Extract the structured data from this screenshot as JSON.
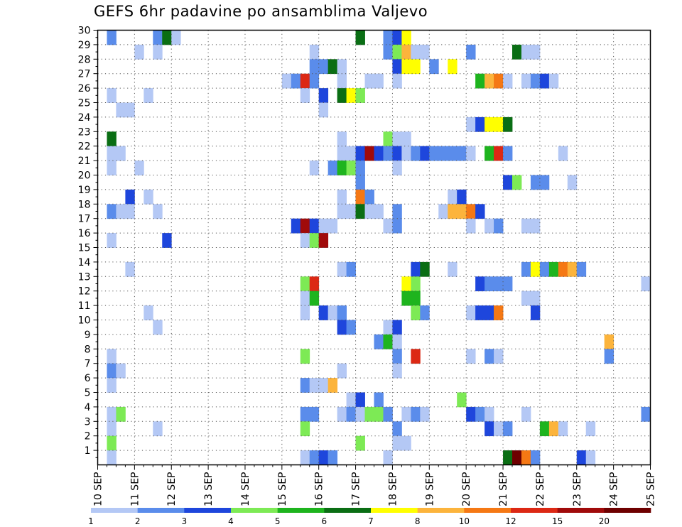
{
  "chart_data": {
    "type": "heatmap",
    "title": "GEFS 6hr padavine po ansamblima Valjevo",
    "xlabel": "",
    "ylabel": "",
    "x_ticks": [
      "10 SEP",
      "11 SEP",
      "12 SEP",
      "13 SEP",
      "14 SEP",
      "15 SEP",
      "16 SEP",
      "17 SEP",
      "18 SEP",
      "19 SEP",
      "20 SEP",
      "21 SEP",
      "22 SEP",
      "23 SEP",
      "24 SEP",
      "25 SEP"
    ],
    "y_ticks": [
      1,
      2,
      3,
      4,
      5,
      6,
      7,
      8,
      9,
      10,
      11,
      12,
      13,
      14,
      15,
      16,
      17,
      18,
      19,
      20,
      21,
      22,
      23,
      24,
      25,
      26,
      27,
      28,
      29,
      30
    ],
    "xlim": [
      0,
      60
    ],
    "ylim": [
      0,
      30
    ],
    "x_unit": "6-hour step after 10 SEP 00Z",
    "grid": "dotted",
    "levels": {
      "labels": [
        "1",
        "2",
        "3",
        "4",
        "5",
        "6",
        "7",
        "8",
        "10",
        "12",
        "15",
        "20"
      ],
      "colors": [
        "#b4c8f5",
        "#5a8ceb",
        "#1e46dc",
        "#7dea55",
        "#1eb41e",
        "#0a6e14",
        "#ffff00",
        "#fcb43c",
        "#f57814",
        "#dc2814",
        "#a00a0a",
        "#6e0000"
      ]
    },
    "cells": [
      [
        1,
        29,
        1
      ],
      [
        6,
        29,
        1
      ],
      [
        7,
        29,
        5
      ],
      [
        8,
        29,
        0
      ],
      [
        28,
        29,
        5
      ],
      [
        31,
        29,
        1
      ],
      [
        32,
        29,
        2
      ],
      [
        33,
        29,
        6
      ],
      [
        4,
        28,
        0
      ],
      [
        6,
        28,
        0
      ],
      [
        23,
        28,
        0
      ],
      [
        31,
        28,
        1
      ],
      [
        32,
        28,
        3
      ],
      [
        33,
        28,
        7
      ],
      [
        34,
        28,
        0
      ],
      [
        35,
        28,
        0
      ],
      [
        40,
        28,
        1
      ],
      [
        45,
        28,
        5
      ],
      [
        46,
        28,
        0
      ],
      [
        47,
        28,
        0
      ],
      [
        23,
        27,
        1
      ],
      [
        24,
        27,
        1
      ],
      [
        25,
        27,
        5
      ],
      [
        26,
        27,
        0
      ],
      [
        32,
        27,
        2
      ],
      [
        33,
        27,
        6
      ],
      [
        34,
        27,
        6
      ],
      [
        36,
        27,
        1
      ],
      [
        38,
        27,
        6
      ],
      [
        20,
        26,
        0
      ],
      [
        21,
        26,
        1
      ],
      [
        22,
        26,
        9
      ],
      [
        23,
        26,
        1
      ],
      [
        26,
        26,
        0
      ],
      [
        29,
        26,
        0
      ],
      [
        30,
        26,
        0
      ],
      [
        32,
        26,
        0
      ],
      [
        41,
        26,
        4
      ],
      [
        42,
        26,
        7
      ],
      [
        43,
        26,
        8
      ],
      [
        44,
        26,
        0
      ],
      [
        46,
        26,
        0
      ],
      [
        47,
        26,
        1
      ],
      [
        48,
        26,
        2
      ],
      [
        49,
        26,
        0
      ],
      [
        1,
        25,
        0
      ],
      [
        5,
        25,
        0
      ],
      [
        22,
        25,
        0
      ],
      [
        24,
        25,
        2
      ],
      [
        26,
        25,
        5
      ],
      [
        27,
        25,
        6
      ],
      [
        28,
        25,
        3
      ],
      [
        2,
        24,
        0
      ],
      [
        3,
        24,
        0
      ],
      [
        24,
        24,
        0
      ],
      [
        40,
        23,
        0
      ],
      [
        41,
        23,
        2
      ],
      [
        42,
        23,
        6
      ],
      [
        43,
        23,
        6
      ],
      [
        44,
        23,
        5
      ],
      [
        1,
        22,
        5
      ],
      [
        26,
        22,
        0
      ],
      [
        31,
        22,
        3
      ],
      [
        32,
        22,
        0
      ],
      [
        33,
        22,
        0
      ],
      [
        1,
        21,
        0
      ],
      [
        2,
        21,
        0
      ],
      [
        26,
        21,
        0
      ],
      [
        27,
        21,
        0
      ],
      [
        28,
        21,
        2
      ],
      [
        29,
        21,
        10
      ],
      [
        30,
        21,
        2
      ],
      [
        31,
        21,
        1
      ],
      [
        32,
        21,
        2
      ],
      [
        33,
        21,
        0
      ],
      [
        34,
        21,
        1
      ],
      [
        35,
        21,
        2
      ],
      [
        36,
        21,
        1
      ],
      [
        37,
        21,
        1
      ],
      [
        38,
        21,
        1
      ],
      [
        39,
        21,
        1
      ],
      [
        40,
        21,
        0
      ],
      [
        42,
        21,
        4
      ],
      [
        43,
        21,
        9
      ],
      [
        44,
        21,
        1
      ],
      [
        50,
        21,
        0
      ],
      [
        1,
        20,
        0
      ],
      [
        4,
        20,
        0
      ],
      [
        23,
        20,
        0
      ],
      [
        25,
        20,
        1
      ],
      [
        26,
        20,
        4
      ],
      [
        27,
        20,
        3
      ],
      [
        28,
        20,
        1
      ],
      [
        32,
        20,
        0
      ],
      [
        28,
        19,
        1
      ],
      [
        44,
        19,
        2
      ],
      [
        45,
        19,
        3
      ],
      [
        47,
        19,
        1
      ],
      [
        48,
        19,
        1
      ],
      [
        51,
        19,
        0
      ],
      [
        3,
        18,
        2
      ],
      [
        5,
        18,
        0
      ],
      [
        26,
        18,
        0
      ],
      [
        28,
        18,
        8
      ],
      [
        29,
        18,
        1
      ],
      [
        38,
        18,
        0
      ],
      [
        39,
        18,
        2
      ],
      [
        1,
        17,
        1
      ],
      [
        2,
        17,
        0
      ],
      [
        3,
        17,
        0
      ],
      [
        6,
        17,
        0
      ],
      [
        26,
        17,
        0
      ],
      [
        27,
        17,
        0
      ],
      [
        28,
        17,
        5
      ],
      [
        29,
        17,
        0
      ],
      [
        30,
        17,
        0
      ],
      [
        32,
        17,
        1
      ],
      [
        37,
        17,
        0
      ],
      [
        38,
        17,
        7
      ],
      [
        39,
        17,
        7
      ],
      [
        40,
        17,
        8
      ],
      [
        41,
        17,
        2
      ],
      [
        21,
        16,
        2
      ],
      [
        22,
        16,
        10
      ],
      [
        23,
        16,
        2
      ],
      [
        24,
        16,
        0
      ],
      [
        25,
        16,
        0
      ],
      [
        31,
        16,
        0
      ],
      [
        32,
        16,
        1
      ],
      [
        40,
        16,
        0
      ],
      [
        42,
        16,
        0
      ],
      [
        43,
        16,
        1
      ],
      [
        46,
        16,
        0
      ],
      [
        47,
        16,
        0
      ],
      [
        1,
        15,
        0
      ],
      [
        7,
        15,
        2
      ],
      [
        22,
        15,
        0
      ],
      [
        23,
        15,
        3
      ],
      [
        24,
        15,
        10
      ],
      [
        3,
        13,
        0
      ],
      [
        26,
        13,
        0
      ],
      [
        27,
        13,
        1
      ],
      [
        34,
        13,
        2
      ],
      [
        35,
        13,
        5
      ],
      [
        38,
        13,
        0
      ],
      [
        46,
        13,
        1
      ],
      [
        47,
        13,
        6
      ],
      [
        48,
        13,
        1
      ],
      [
        49,
        13,
        4
      ],
      [
        50,
        13,
        8
      ],
      [
        51,
        13,
        7
      ],
      [
        52,
        13,
        1
      ],
      [
        22,
        12,
        3
      ],
      [
        23,
        12,
        9
      ],
      [
        33,
        12,
        6
      ],
      [
        34,
        12,
        3
      ],
      [
        41,
        12,
        2
      ],
      [
        42,
        12,
        1
      ],
      [
        43,
        12,
        1
      ],
      [
        44,
        12,
        1
      ],
      [
        59,
        12,
        0
      ],
      [
        22,
        11,
        0
      ],
      [
        23,
        11,
        4
      ],
      [
        33,
        11,
        4
      ],
      [
        34,
        11,
        4
      ],
      [
        46,
        11,
        0
      ],
      [
        47,
        11,
        0
      ],
      [
        5,
        10,
        0
      ],
      [
        22,
        10,
        0
      ],
      [
        24,
        10,
        2
      ],
      [
        25,
        10,
        0
      ],
      [
        26,
        10,
        1
      ],
      [
        34,
        10,
        3
      ],
      [
        35,
        10,
        1
      ],
      [
        40,
        10,
        0
      ],
      [
        41,
        10,
        2
      ],
      [
        42,
        10,
        2
      ],
      [
        43,
        10,
        8
      ],
      [
        47,
        10,
        2
      ],
      [
        6,
        9,
        0
      ],
      [
        26,
        9,
        2
      ],
      [
        27,
        9,
        1
      ],
      [
        31,
        9,
        0
      ],
      [
        32,
        9,
        2
      ],
      [
        30,
        8,
        1
      ],
      [
        31,
        8,
        4
      ],
      [
        32,
        8,
        0
      ],
      [
        55,
        8,
        7
      ],
      [
        1,
        7,
        0
      ],
      [
        22,
        7,
        3
      ],
      [
        32,
        7,
        1
      ],
      [
        34,
        7,
        9
      ],
      [
        40,
        7,
        0
      ],
      [
        42,
        7,
        1
      ],
      [
        43,
        7,
        0
      ],
      [
        55,
        7,
        1
      ],
      [
        1,
        6,
        1
      ],
      [
        2,
        6,
        0
      ],
      [
        26,
        6,
        0
      ],
      [
        32,
        6,
        0
      ],
      [
        1,
        5,
        0
      ],
      [
        22,
        5,
        1
      ],
      [
        23,
        5,
        0
      ],
      [
        24,
        5,
        0
      ],
      [
        25,
        5,
        7
      ],
      [
        27,
        4,
        0
      ],
      [
        28,
        4,
        2
      ],
      [
        30,
        4,
        1
      ],
      [
        39,
        4,
        3
      ],
      [
        1,
        3,
        0
      ],
      [
        2,
        3,
        3
      ],
      [
        22,
        3,
        1
      ],
      [
        23,
        3,
        1
      ],
      [
        26,
        3,
        0
      ],
      [
        27,
        3,
        1
      ],
      [
        28,
        3,
        0
      ],
      [
        29,
        3,
        3
      ],
      [
        30,
        3,
        3
      ],
      [
        31,
        3,
        1
      ],
      [
        33,
        3,
        0
      ],
      [
        34,
        3,
        1
      ],
      [
        35,
        3,
        0
      ],
      [
        40,
        3,
        2
      ],
      [
        41,
        3,
        1
      ],
      [
        42,
        3,
        0
      ],
      [
        46,
        3,
        0
      ],
      [
        59,
        3,
        1
      ],
      [
        1,
        2,
        0
      ],
      [
        6,
        2,
        0
      ],
      [
        22,
        2,
        3
      ],
      [
        32,
        2,
        1
      ],
      [
        42,
        2,
        2
      ],
      [
        43,
        2,
        0
      ],
      [
        44,
        2,
        1
      ],
      [
        48,
        2,
        4
      ],
      [
        49,
        2,
        7
      ],
      [
        50,
        2,
        0
      ],
      [
        53,
        2,
        0
      ],
      [
        1,
        1,
        3
      ],
      [
        28,
        1,
        3
      ],
      [
        32,
        1,
        0
      ],
      [
        33,
        1,
        0
      ],
      [
        1,
        0,
        0
      ],
      [
        22,
        0,
        0
      ],
      [
        23,
        0,
        1
      ],
      [
        24,
        0,
        2
      ],
      [
        25,
        0,
        1
      ],
      [
        31,
        0,
        0
      ],
      [
        44,
        0,
        5
      ],
      [
        45,
        0,
        11
      ],
      [
        46,
        0,
        8
      ],
      [
        47,
        0,
        1
      ],
      [
        52,
        0,
        2
      ],
      [
        53,
        0,
        0
      ]
    ]
  }
}
